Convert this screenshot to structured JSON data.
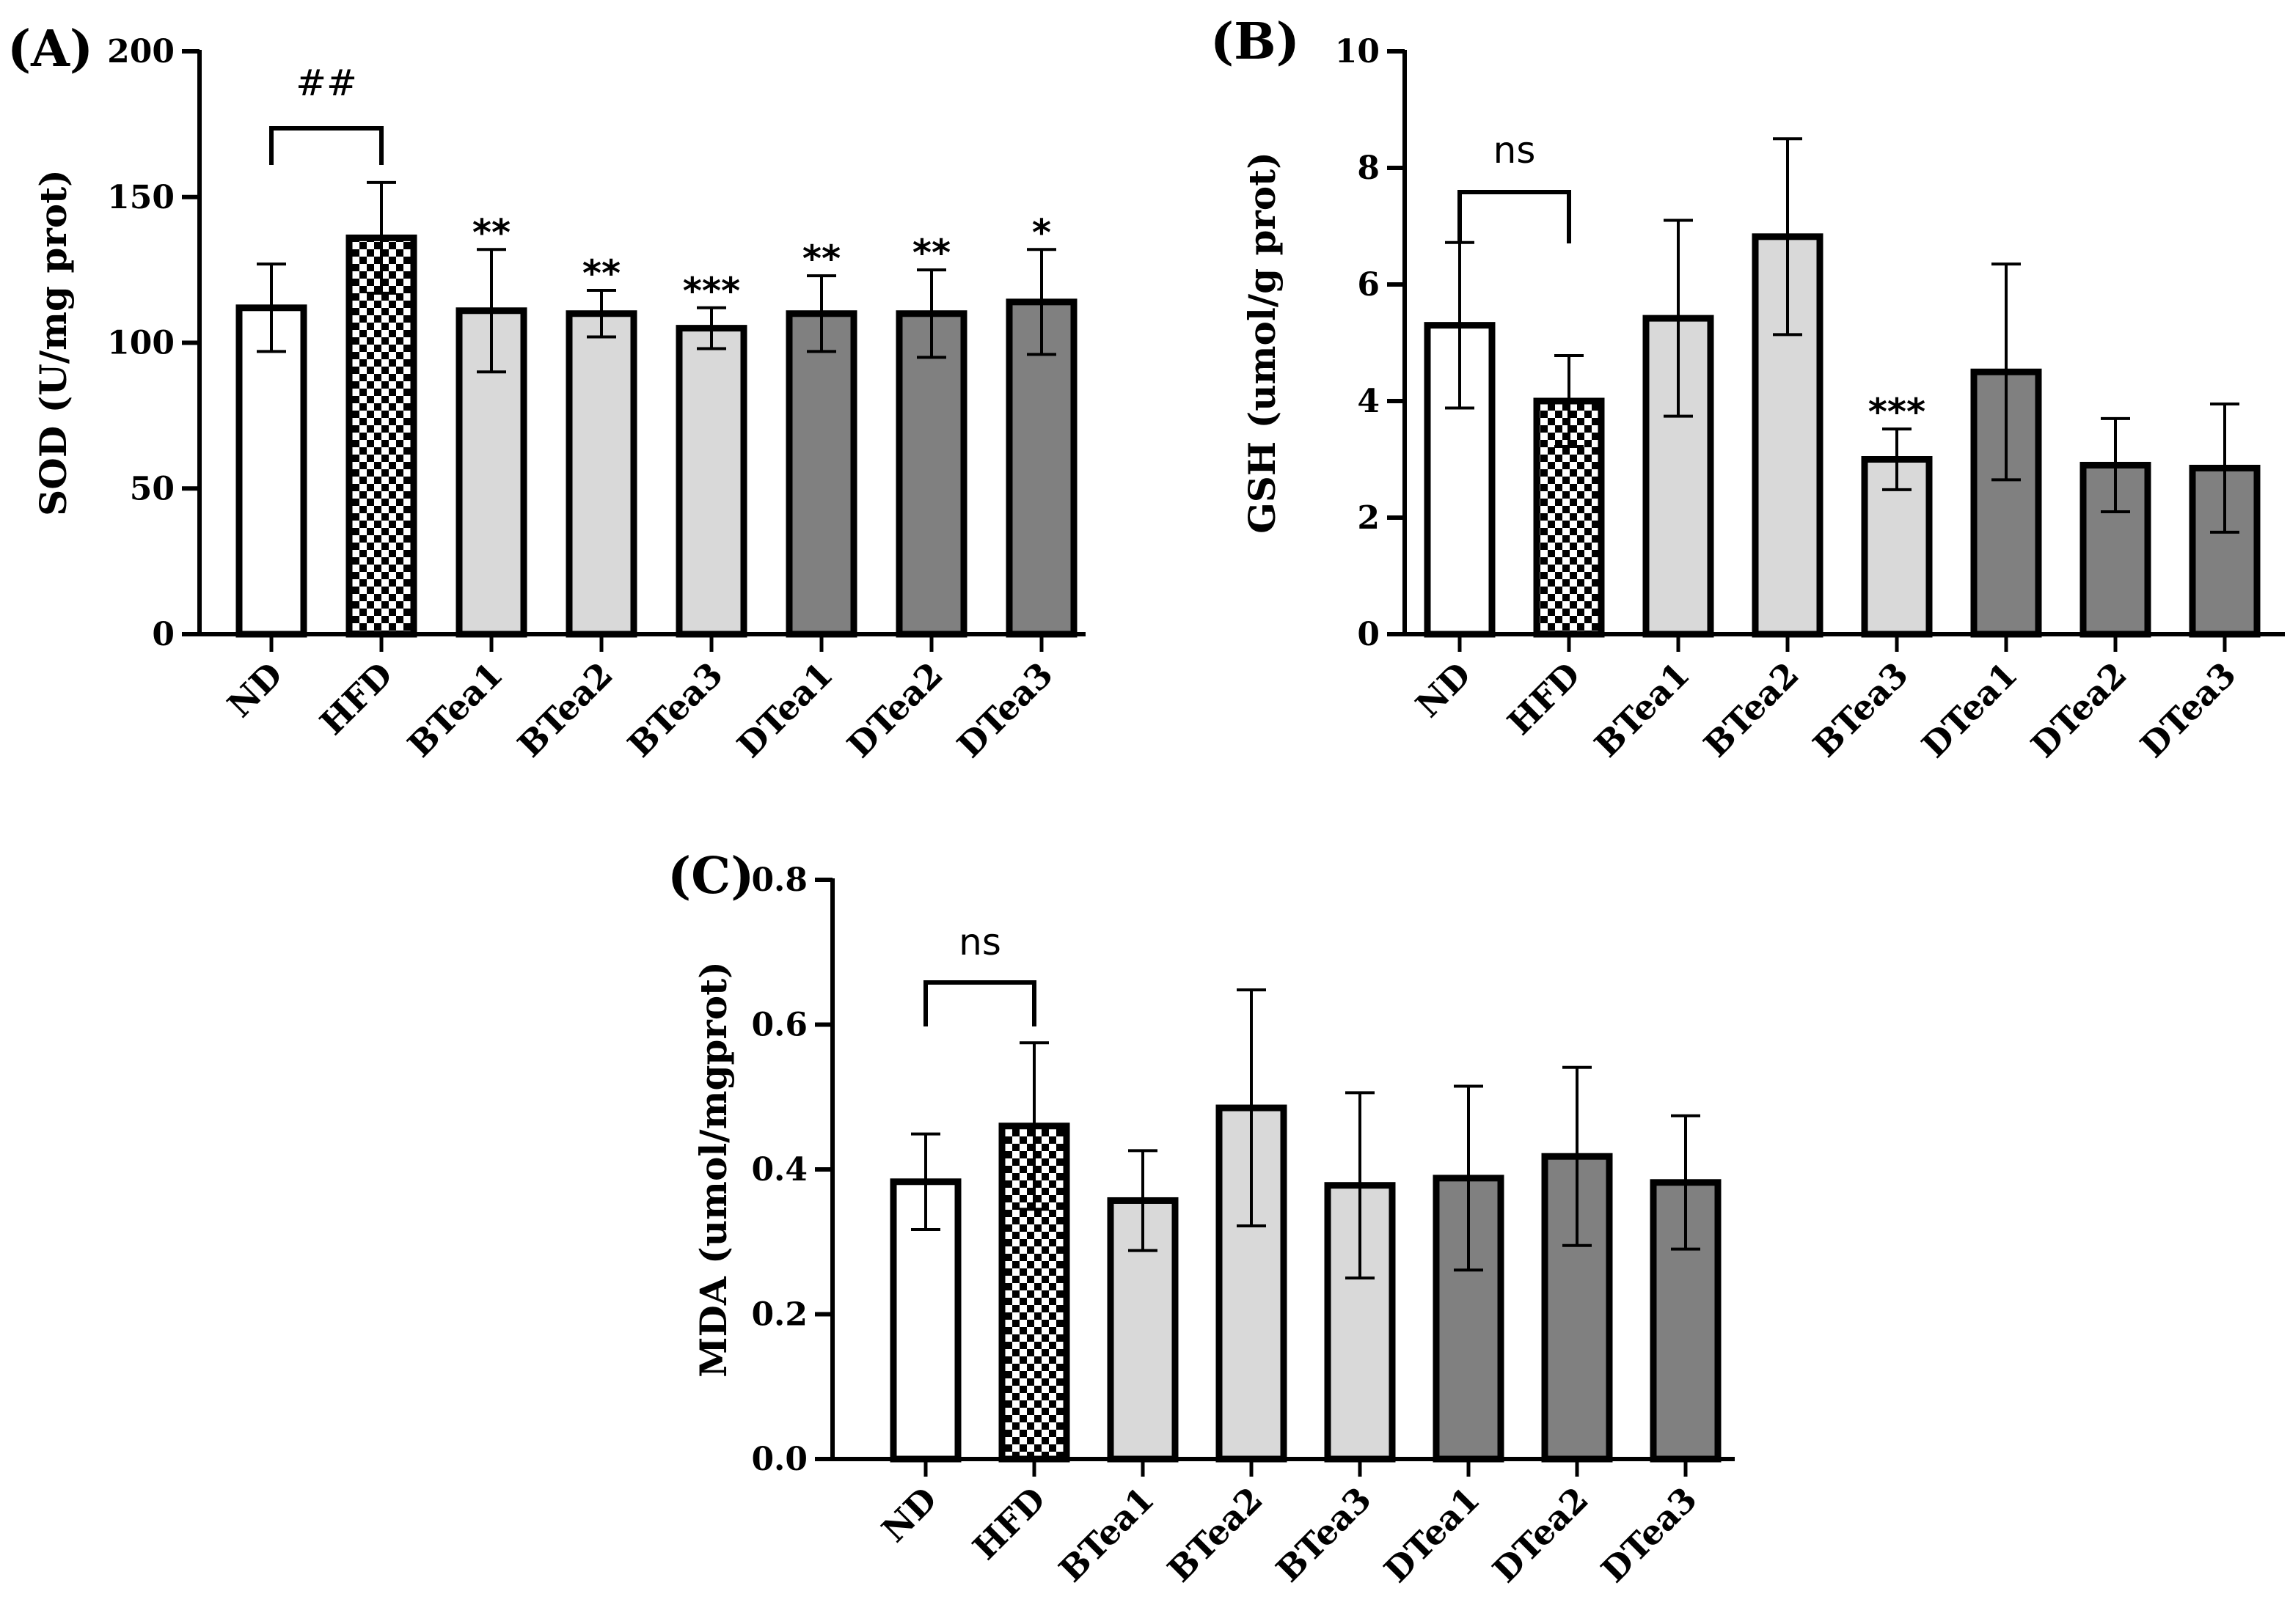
{
  "chart_data": [
    {
      "type": "bar",
      "panel": "(A)",
      "ylabel": "SOD (U/mg prot)",
      "ylim": [
        0,
        200
      ],
      "yticks": [
        0,
        50,
        100,
        150,
        200
      ],
      "categories": [
        "ND",
        "HFD",
        "BTea1",
        "BTea2",
        "BTea3",
        "DTea1",
        "DTea2",
        "DTea3"
      ],
      "values": [
        112,
        136,
        111,
        110,
        105,
        110,
        110,
        114
      ],
      "errors": [
        15,
        19,
        21,
        8,
        7,
        13,
        15,
        18
      ],
      "fills": [
        "white",
        "checker",
        "#d9d9d9",
        "#d9d9d9",
        "#d9d9d9",
        "#808080",
        "#808080",
        "#808080"
      ],
      "annotations": [
        "",
        "",
        "**",
        "**",
        "***",
        "**",
        "**",
        "*"
      ],
      "bracket": {
        "from": 0,
        "to": 1,
        "label": "##"
      }
    },
    {
      "type": "bar",
      "panel": "(B)",
      "ylabel": "GSH (umol/g prot)",
      "ylim": [
        0,
        10
      ],
      "yticks": [
        0,
        2,
        4,
        6,
        8,
        10
      ],
      "categories": [
        "ND",
        "HFD",
        "BTea1",
        "BTea2",
        "BTea3",
        "DTea1",
        "DTea2",
        "DTea3"
      ],
      "values": [
        5.3,
        4.0,
        5.42,
        6.82,
        3.0,
        4.5,
        2.9,
        2.85
      ],
      "errors": [
        1.42,
        0.78,
        1.68,
        1.68,
        0.52,
        1.85,
        0.8,
        1.1
      ],
      "fills": [
        "white",
        "checker",
        "#d9d9d9",
        "#d9d9d9",
        "#d9d9d9",
        "#808080",
        "#808080",
        "#808080"
      ],
      "annotations": [
        "",
        "",
        "",
        "",
        "***",
        "",
        "",
        ""
      ],
      "bracket": {
        "from": 0,
        "to": 1,
        "label": "ns"
      }
    },
    {
      "type": "bar",
      "panel": "(C)",
      "ylabel": "MDA (umol/mgprot)",
      "ylim": [
        0,
        0.8
      ],
      "yticks": [
        0.0,
        0.2,
        0.4,
        0.6,
        0.8
      ],
      "tick_labels": [
        "0.0",
        "0.2",
        "0.4",
        "0.6",
        "0.8"
      ],
      "categories": [
        "ND",
        "HFD",
        "BTea1",
        "BTea2",
        "BTea3",
        "DTea1",
        "DTea2",
        "DTea3"
      ],
      "values": [
        0.383,
        0.46,
        0.357,
        0.485,
        0.378,
        0.388,
        0.418,
        0.382
      ],
      "errors": [
        0.066,
        0.115,
        0.069,
        0.163,
        0.128,
        0.127,
        0.123,
        0.092
      ],
      "fills": [
        "white",
        "checker",
        "#d9d9d9",
        "#d9d9d9",
        "#d9d9d9",
        "#808080",
        "#808080",
        "#808080"
      ],
      "annotations": [
        "",
        "",
        "",
        "",
        "",
        "",
        "",
        ""
      ],
      "bracket": {
        "from": 0,
        "to": 1,
        "label": "ns"
      }
    }
  ]
}
